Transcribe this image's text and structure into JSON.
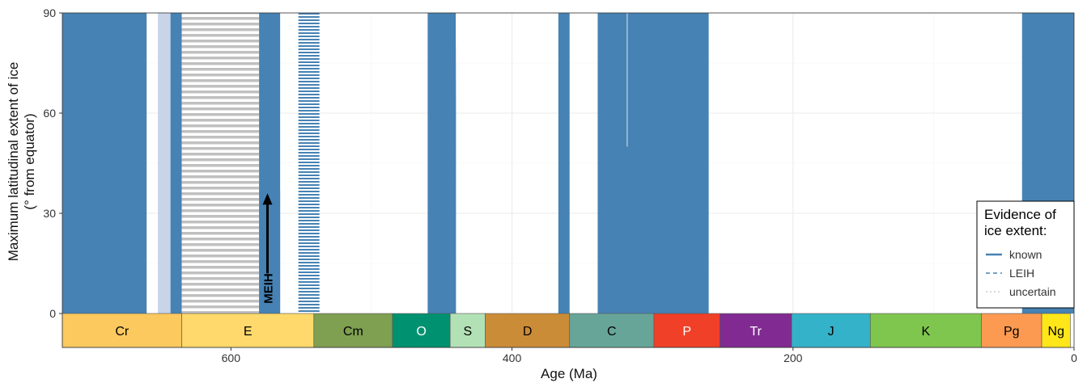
{
  "chart_data": {
    "type": "area",
    "xlabel": "Age (Ma)",
    "ylabel_line1": "Maximum latitudinal extent of ice",
    "ylabel_line2": "(° from equator)",
    "xlim": [
      720,
      0
    ],
    "ylim": [
      0,
      90
    ],
    "x_ticks": [
      600,
      400,
      200,
      0
    ],
    "y_ticks": [
      0,
      30,
      60,
      90
    ],
    "grid": true,
    "colors": {
      "known": "#4682b4",
      "leih": "#4682b4",
      "uncertain": "#c0c0c0",
      "leih_band": "#c8d4e8"
    },
    "series": [
      {
        "name": "known",
        "style": "solid",
        "bars": [
          {
            "x0": 720,
            "x1": 660,
            "y": 90
          },
          {
            "x0": 643,
            "x1": 635,
            "y": 90
          },
          {
            "x0": 580,
            "x1": 565,
            "y": 90
          },
          {
            "x0": 565,
            "x1": 580,
            "y": 37
          },
          {
            "x0": 460,
            "x1": 440,
            "y": 90
          },
          {
            "x0": 458,
            "x1": 440,
            "y": 80
          },
          {
            "x0": 456,
            "x1": 440,
            "y": 75
          },
          {
            "x0": 454,
            "x1": 440,
            "y": 70
          },
          {
            "x0": 452,
            "x1": 440,
            "y": 65
          },
          {
            "x0": 450,
            "x1": 440,
            "y": 60
          },
          {
            "x0": 448,
            "x1": 444,
            "y": 55
          },
          {
            "x0": 447,
            "x1": 444,
            "y": 50
          },
          {
            "x0": 446,
            "x1": 444,
            "y": 45
          },
          {
            "x0": 446,
            "x1": 444,
            "y": 40
          },
          {
            "x0": 367,
            "x1": 359,
            "y": 90
          },
          {
            "x0": 363,
            "x1": 360,
            "y": 80
          },
          {
            "x0": 339,
            "x1": 260,
            "y": 90
          },
          {
            "x0": 338,
            "x1": 277,
            "y": 80
          },
          {
            "x0": 337,
            "x1": 282,
            "y": 75
          },
          {
            "x0": 336,
            "x1": 282,
            "y": 70
          },
          {
            "x0": 335,
            "x1": 294,
            "y": 65
          },
          {
            "x0": 334,
            "x1": 294,
            "y": 60
          },
          {
            "x0": 332,
            "x1": 296,
            "y": 55
          },
          {
            "x0": 328,
            "x1": 296,
            "y": 50
          },
          {
            "x0": 310,
            "x1": 298,
            "y": 45
          },
          {
            "x0": 309,
            "x1": 300,
            "y": 40
          },
          {
            "x0": 37,
            "x1": 0,
            "y": 90
          },
          {
            "x0": 36,
            "x1": 0,
            "y": 70
          },
          {
            "x0": 35,
            "x1": 28,
            "y": 65
          },
          {
            "x0": 19,
            "x1": 0,
            "y": 65
          },
          {
            "x0": 35,
            "x1": 28,
            "y": 60
          },
          {
            "x0": 18,
            "x1": 3,
            "y": 60
          },
          {
            "x0": 3,
            "x1": 0,
            "y": 40
          }
        ]
      },
      {
        "name": "LEIH",
        "style": "dashed",
        "bars": [
          {
            "x0": 552,
            "x1": 537,
            "y": 90
          }
        ]
      },
      {
        "name": "uncertain",
        "style": "dotted",
        "bars": [
          {
            "x0": 635,
            "x1": 580,
            "y": 90
          }
        ]
      }
    ],
    "leih_band": {
      "x0": 652,
      "x1": 643,
      "y": 90
    },
    "annotation": {
      "text": "MEIH",
      "x": 574,
      "y_from": 3,
      "y_to": 36
    },
    "periods": [
      {
        "label": "Cr",
        "start": 720,
        "end": 635,
        "color": "#FCC95E",
        "text_color": "#000000"
      },
      {
        "label": "E",
        "start": 635,
        "end": 541,
        "color": "#FFD96C",
        "text_color": "#000000"
      },
      {
        "label": "Cm",
        "start": 541,
        "end": 485,
        "color": "#7F9F51",
        "text_color": "#000000"
      },
      {
        "label": "O",
        "start": 485,
        "end": 444,
        "color": "#009270",
        "text_color": "#ffffff"
      },
      {
        "label": "S",
        "start": 444,
        "end": 419,
        "color": "#B3E1B6",
        "text_color": "#000000"
      },
      {
        "label": "D",
        "start": 419,
        "end": 359,
        "color": "#CB8C37",
        "text_color": "#000000"
      },
      {
        "label": "C",
        "start": 359,
        "end": 299,
        "color": "#67A599",
        "text_color": "#000000"
      },
      {
        "label": "P",
        "start": 299,
        "end": 252,
        "color": "#F04028",
        "text_color": "#ffffff"
      },
      {
        "label": "Tr",
        "start": 252,
        "end": 201,
        "color": "#812B92",
        "text_color": "#ffffff"
      },
      {
        "label": "J",
        "start": 201,
        "end": 145,
        "color": "#34B2C9",
        "text_color": "#000000"
      },
      {
        "label": "K",
        "start": 145,
        "end": 66,
        "color": "#7FC64E",
        "text_color": "#000000"
      },
      {
        "label": "Pg",
        "start": 66,
        "end": 23,
        "color": "#FD9A52",
        "text_color": "#000000"
      },
      {
        "label": "Ng",
        "start": 23,
        "end": 2.6,
        "color": "#FFE619",
        "text_color": "#000000"
      }
    ],
    "legend": {
      "title_line1": "Evidence of",
      "title_line2": "ice extent:",
      "position": "bottom-right",
      "items": [
        {
          "label": "known",
          "style": "solid"
        },
        {
          "label": "LEIH",
          "style": "dashed"
        },
        {
          "label": "uncertain",
          "style": "dotted"
        }
      ]
    }
  }
}
